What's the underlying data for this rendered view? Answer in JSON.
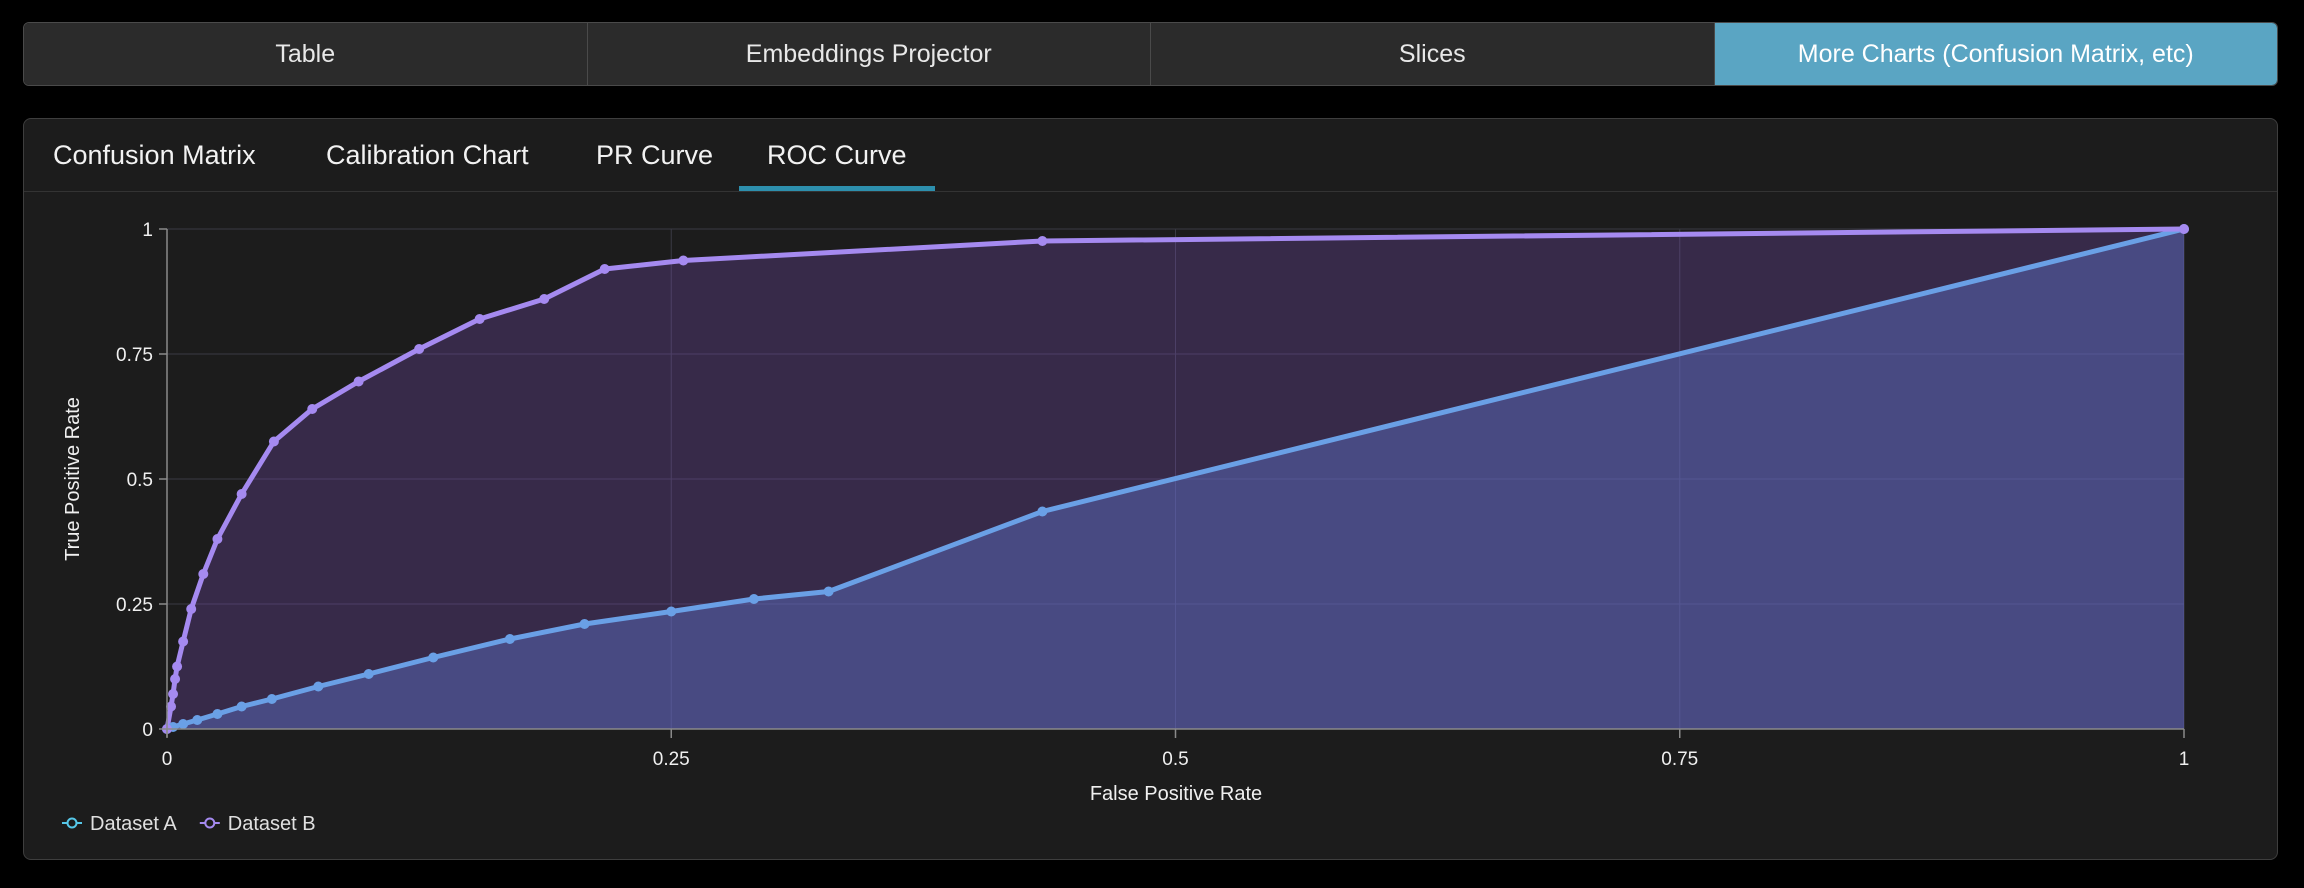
{
  "top_nav": {
    "items": [
      {
        "label": "Table",
        "active": false
      },
      {
        "label": "Embeddings Projector",
        "active": false
      },
      {
        "label": "Slices",
        "active": false
      },
      {
        "label": "More Charts (Confusion Matrix, etc)",
        "active": true
      }
    ]
  },
  "chart_tabs": {
    "items": [
      {
        "label": "Confusion Matrix",
        "active": false
      },
      {
        "label": "Calibration Chart",
        "active": false
      },
      {
        "label": "PR Curve",
        "active": false
      },
      {
        "label": "ROC Curve",
        "active": true
      }
    ]
  },
  "colors": {
    "accent": "#5aa5c3",
    "tab_underline": "#2d8fad",
    "dataset_a_line": "#6aa0e6",
    "dataset_a_legend": "#56c7e8",
    "dataset_b_line": "#a58af0"
  },
  "chart_data": {
    "type": "line",
    "title": "ROC Curve",
    "xlabel": "False Positive Rate",
    "ylabel": "True Positive Rate",
    "xlim": [
      0,
      1
    ],
    "ylim": [
      0,
      1
    ],
    "x_ticks": [
      "0",
      "0.25",
      "0.5",
      "0.75",
      "1"
    ],
    "y_ticks": [
      "0",
      "0.25",
      "0.5",
      "0.75",
      "1"
    ],
    "grid": true,
    "legend_position": "bottom-left",
    "series": [
      {
        "name": "Dataset A",
        "area_fill": true,
        "points": [
          [
            0,
            0
          ],
          [
            0.003,
            0.004
          ],
          [
            0.008,
            0.01
          ],
          [
            0.015,
            0.018
          ],
          [
            0.025,
            0.03
          ],
          [
            0.037,
            0.045
          ],
          [
            0.052,
            0.06
          ],
          [
            0.075,
            0.085
          ],
          [
            0.1,
            0.11
          ],
          [
            0.132,
            0.143
          ],
          [
            0.17,
            0.18
          ],
          [
            0.207,
            0.21
          ],
          [
            0.25,
            0.235
          ],
          [
            0.291,
            0.26
          ],
          [
            0.328,
            0.275
          ],
          [
            0.434,
            0.435
          ],
          [
            1,
            1
          ]
        ]
      },
      {
        "name": "Dataset B",
        "area_fill": true,
        "points": [
          [
            0,
            0
          ],
          [
            0.002,
            0.045
          ],
          [
            0.003,
            0.07
          ],
          [
            0.004,
            0.1
          ],
          [
            0.005,
            0.125
          ],
          [
            0.008,
            0.175
          ],
          [
            0.012,
            0.24
          ],
          [
            0.018,
            0.31
          ],
          [
            0.025,
            0.38
          ],
          [
            0.037,
            0.47
          ],
          [
            0.053,
            0.575
          ],
          [
            0.072,
            0.64
          ],
          [
            0.095,
            0.695
          ],
          [
            0.125,
            0.76
          ],
          [
            0.155,
            0.82
          ],
          [
            0.187,
            0.86
          ],
          [
            0.217,
            0.92
          ],
          [
            0.256,
            0.937
          ],
          [
            0.434,
            0.976
          ],
          [
            1,
            1
          ]
        ]
      }
    ]
  }
}
